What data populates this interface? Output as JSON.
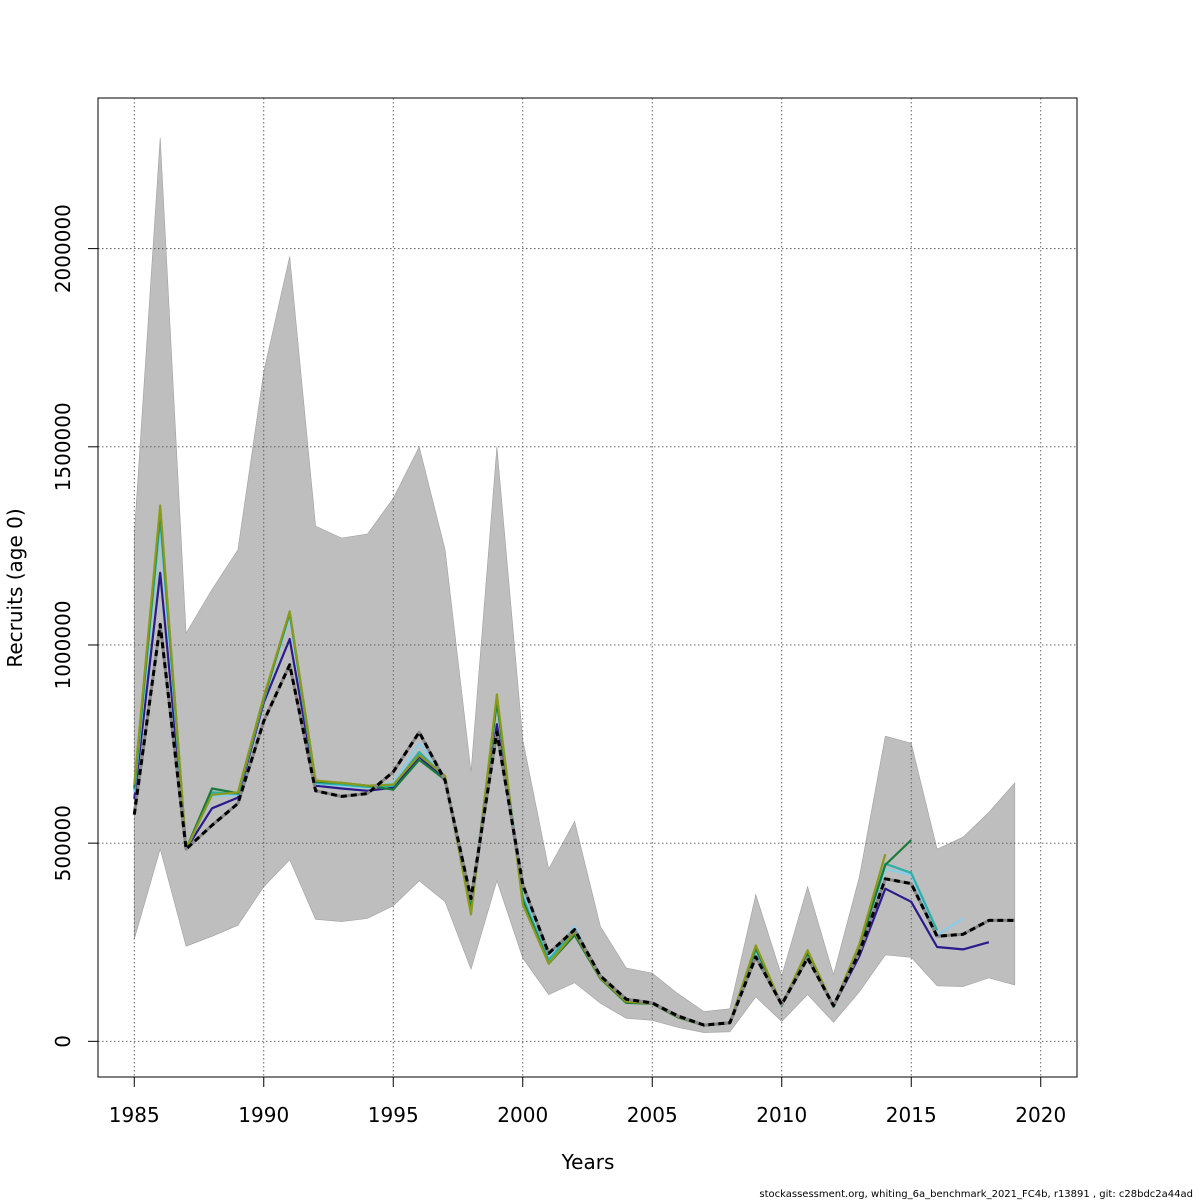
{
  "chart_data": {
    "type": "line",
    "xlabel": "Years",
    "ylabel": "Recruits (age 0)",
    "xlim": [
      1983.6,
      2021.4
    ],
    "ylim": [
      -90000,
      2380000
    ],
    "x_ticks": [
      1985,
      1990,
      1995,
      2000,
      2005,
      2010,
      2015,
      2020
    ],
    "y_ticks": [
      0,
      500000,
      1000000,
      1500000,
      2000000
    ],
    "x_tick_labels": [
      "1985",
      "1990",
      "1995",
      "2000",
      "2005",
      "2010",
      "2015",
      "2020"
    ],
    "y_tick_labels": [
      "0",
      "500000",
      "1000000",
      "1500000",
      "2000000"
    ],
    "grid": true,
    "confidence_band": {
      "color": "#bebebe",
      "years": [
        1985,
        1986,
        1987,
        1988,
        1989,
        1990,
        1991,
        1992,
        1993,
        1994,
        1995,
        1996,
        1997,
        1998,
        1999,
        2000,
        2001,
        2002,
        2003,
        2004,
        2005,
        2006,
        2007,
        2008,
        2009,
        2010,
        2011,
        2012,
        2013,
        2014,
        2015,
        2016,
        2017,
        2018,
        2019
      ],
      "upper": [
        1280000,
        2280000,
        1030000,
        1140000,
        1240000,
        1690000,
        1980000,
        1300000,
        1270000,
        1280000,
        1370000,
        1500000,
        1240000,
        680000,
        1500000,
        760000,
        435000,
        555000,
        290000,
        185000,
        172000,
        120000,
        75000,
        82000,
        370000,
        165000,
        390000,
        168000,
        415000,
        770000,
        752000,
        485000,
        515000,
        578000,
        652000
      ],
      "lower": [
        258000,
        485000,
        240000,
        265000,
        293000,
        390000,
        458000,
        308000,
        302000,
        310000,
        342000,
        405000,
        352000,
        182000,
        405000,
        210000,
        118000,
        148000,
        96000,
        58000,
        53000,
        35000,
        22000,
        24000,
        112000,
        50000,
        118000,
        48000,
        125000,
        218000,
        212000,
        140000,
        138000,
        160000,
        142000
      ]
    },
    "series": [
      {
        "color": "#2a1a8c",
        "dashed": false,
        "years": [
          1985,
          1986,
          1987,
          1988,
          1989,
          1990,
          1991,
          1992,
          1993,
          1994,
          1995,
          1996,
          1997,
          1998,
          1999,
          2000,
          2001,
          2002,
          2003,
          2004,
          2005,
          2006,
          2007,
          2008,
          2009,
          2010,
          2011,
          2012,
          2013,
          2014,
          2015,
          2016,
          2017,
          2018
        ],
        "values": [
          612000,
          1182000,
          485000,
          588000,
          615000,
          855000,
          1015000,
          645000,
          638000,
          632000,
          640000,
          718000,
          660000,
          338000,
          800000,
          372000,
          210000,
          280000,
          160000,
          102000,
          97000,
          62000,
          40000,
          46000,
          212000,
          92000,
          212000,
          88000,
          215000,
          385000,
          352000,
          238000,
          232000,
          250000
        ]
      },
      {
        "color": "#87ceeb",
        "dashed": false,
        "years": [
          1985,
          1986,
          1987,
          1988,
          1989,
          1990,
          1991,
          1992,
          1993,
          1994,
          1995,
          1996,
          1997,
          1998,
          1999,
          2000,
          2001,
          2002,
          2003,
          2004,
          2005,
          2006,
          2007,
          2008,
          2009,
          2010,
          2011,
          2012,
          2013,
          2014,
          2015,
          2016,
          2017
        ],
        "values": [
          628000,
          1290000,
          485000,
          618000,
          622000,
          862000,
          1070000,
          650000,
          645000,
          640000,
          652000,
          752000,
          668000,
          340000,
          850000,
          378000,
          212000,
          290000,
          160000,
          102000,
          96000,
          62000,
          41000,
          47000,
          226000,
          93000,
          220000,
          91000,
          235000,
          435000,
          420000,
          268000,
          310000
        ]
      },
      {
        "color": "#2ab0a8",
        "dashed": false,
        "years": [
          1985,
          1986,
          1987,
          1988,
          1989,
          1990,
          1991,
          1992,
          1993,
          1994,
          1995,
          1996,
          1997,
          1998,
          1999,
          2000,
          2001,
          2002,
          2003,
          2004,
          2005,
          2006,
          2007,
          2008,
          2009,
          2010,
          2011,
          2012,
          2013,
          2014,
          2015,
          2016
        ],
        "values": [
          635000,
          1320000,
          485000,
          628000,
          624000,
          868000,
          1080000,
          652000,
          648000,
          642000,
          645000,
          730000,
          666000,
          336000,
          860000,
          362000,
          205000,
          282000,
          160000,
          100000,
          96000,
          62000,
          40000,
          47000,
          232000,
          92000,
          222000,
          89000,
          238000,
          448000,
          425000,
          280000
        ]
      },
      {
        "color": "#1a7a3a",
        "dashed": false,
        "years": [
          1985,
          1986,
          1987,
          1988,
          1989,
          1990,
          1991,
          1992,
          1993,
          1994,
          1995,
          1996,
          1997,
          1998,
          1999,
          2000,
          2001,
          2002,
          2003,
          2004,
          2005,
          2006,
          2007,
          2008,
          2009,
          2010,
          2011,
          2012,
          2013,
          2014,
          2015
        ],
        "values": [
          640000,
          1340000,
          485000,
          638000,
          626000,
          865000,
          1082000,
          655000,
          652000,
          645000,
          635000,
          710000,
          660000,
          330000,
          858000,
          355000,
          196000,
          268000,
          158000,
          97000,
          95000,
          60000,
          40000,
          46000,
          236000,
          90000,
          222000,
          87000,
          240000,
          445000,
          508000
        ]
      },
      {
        "color": "#8b9a1a",
        "dashed": false,
        "years": [
          1985,
          1986,
          1987,
          1988,
          1989,
          1990,
          1991,
          1992,
          1993,
          1994,
          1995,
          1996,
          1997,
          1998,
          1999,
          2000,
          2001,
          2002,
          2003,
          2004,
          2005,
          2006,
          2007,
          2008,
          2009,
          2010,
          2011,
          2012,
          2013,
          2014
        ],
        "values": [
          648000,
          1352000,
          485000,
          622000,
          628000,
          870000,
          1085000,
          658000,
          652000,
          645000,
          648000,
          722000,
          670000,
          320000,
          875000,
          345000,
          196000,
          275000,
          160000,
          100000,
          96000,
          62000,
          40000,
          48000,
          242000,
          92000,
          230000,
          89000,
          245000,
          472000
        ]
      },
      {
        "color": "#000000",
        "dashed": true,
        "years": [
          1985,
          1986,
          1987,
          1988,
          1989,
          1990,
          1991,
          1992,
          1993,
          1994,
          1995,
          1996,
          1997,
          1998,
          1999,
          2000,
          2001,
          2002,
          2003,
          2004,
          2005,
          2006,
          2007,
          2008,
          2009,
          2010,
          2011,
          2012,
          2013,
          2014,
          2015,
          2016,
          2017,
          2018,
          2019
        ],
        "values": [
          572000,
          1052000,
          485000,
          545000,
          600000,
          808000,
          950000,
          632000,
          618000,
          625000,
          680000,
          780000,
          658000,
          360000,
          780000,
          395000,
          222000,
          282000,
          165000,
          106000,
          97000,
          64000,
          41000,
          47000,
          213000,
          93000,
          210000,
          90000,
          225000,
          410000,
          398000,
          265000,
          270000,
          305000,
          305000
        ]
      }
    ]
  },
  "footer": "stockassessment.org, whiting_6a_benchmark_2021_FC4b, r13891 , git: c28bdc2a44ad"
}
